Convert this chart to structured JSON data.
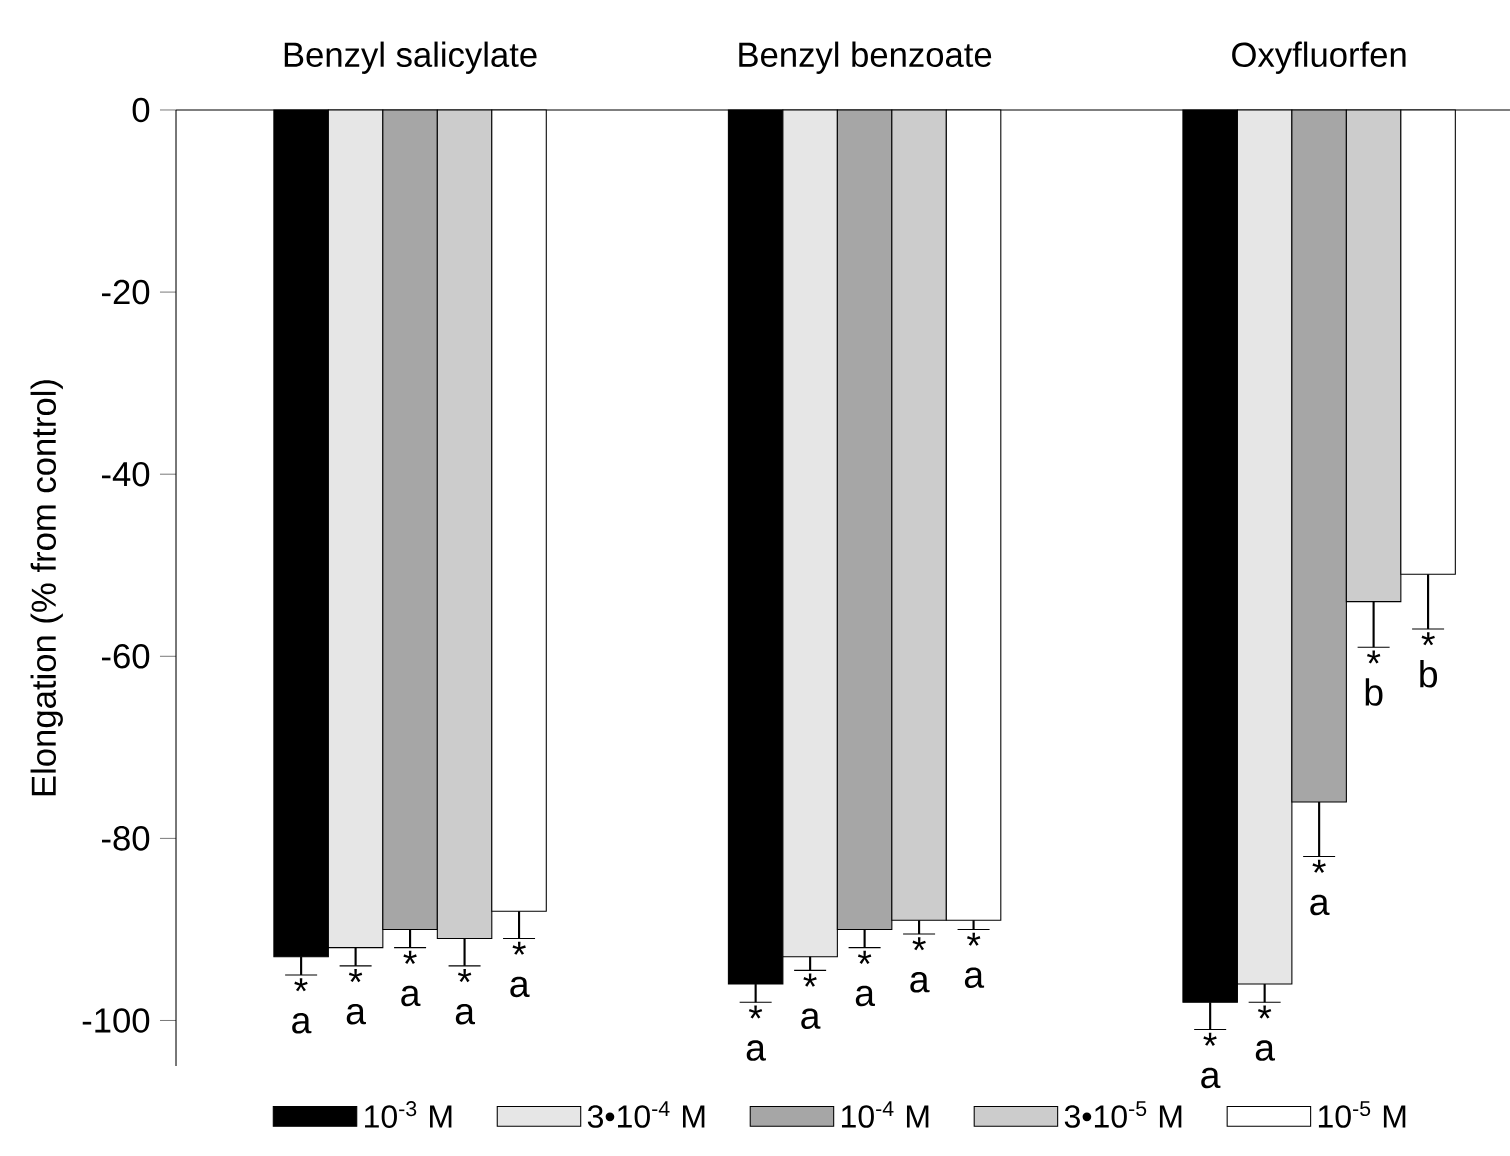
{
  "chart_data": {
    "type": "bar",
    "ylabel": "Elongation (% from control)",
    "categories": [
      "Benzyl salicylate",
      "Benzyl benzoate",
      "Oxyfluorfen"
    ],
    "series": [
      {
        "name": "10$^{-3}$ M",
        "color": "#000000",
        "values": [
          -93,
          -96,
          -98
        ],
        "errors": [
          [
            -95,
            -93
          ],
          [
            -98,
            -96
          ],
          [
            -101,
            -98
          ]
        ],
        "value_labels": [
          "* a",
          "* a",
          "* a"
        ]
      },
      {
        "name": "3•10$^{-4}$ M",
        "color": "#e6e6e6",
        "values": [
          -92,
          -93,
          -96
        ],
        "errors": [
          [
            -94,
            -92
          ],
          [
            -94.5,
            -93
          ],
          [
            -98,
            -96
          ]
        ],
        "value_labels": [
          "* a",
          "* a",
          "* a"
        ]
      },
      {
        "name": "10$^{-4}$ M",
        "color": "#a6a6a6",
        "values": [
          -90,
          -90,
          -76
        ],
        "errors": [
          [
            -92,
            -90
          ],
          [
            -92,
            -90
          ],
          [
            -82,
            -76
          ]
        ],
        "value_labels": [
          "* a",
          "* a",
          "* a"
        ]
      },
      {
        "name": "3•10$^{-5}$ M",
        "color": "#cccccc",
        "values": [
          -91,
          -89,
          -54
        ],
        "errors": [
          [
            -94,
            -91
          ],
          [
            -90.5,
            -89
          ],
          [
            -59,
            -54
          ]
        ],
        "value_labels": [
          "* a",
          "* a",
          "* b"
        ]
      },
      {
        "name": "10$^{-5}$ M",
        "color": "#ffffff",
        "values": [
          -88,
          -89,
          -51
        ],
        "errors": [
          [
            -91,
            -88
          ],
          [
            -90,
            -89
          ],
          [
            -57,
            -51
          ]
        ],
        "value_labels": [
          "* a",
          "* a",
          "* b"
        ]
      }
    ],
    "ylim": [
      -105,
      0
    ],
    "yticks": [
      0,
      -20,
      -40,
      -60,
      -80,
      -100
    ],
    "grid": false,
    "legend": "bottom"
  }
}
